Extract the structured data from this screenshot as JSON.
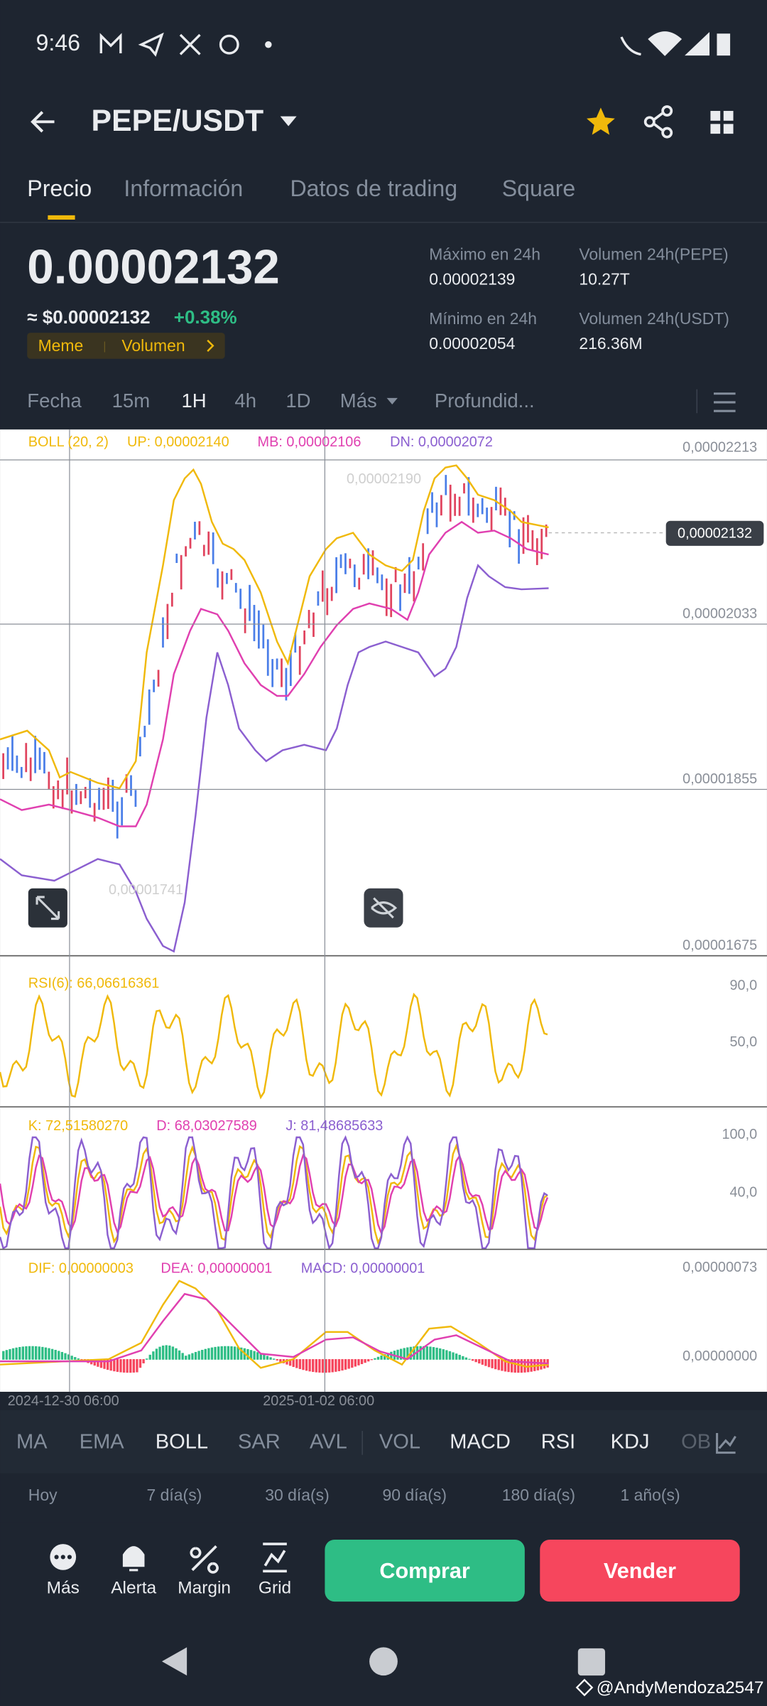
{
  "status_bar": {
    "time": "9:46"
  },
  "header": {
    "pair": "PEPE/USDT"
  },
  "tabs": [
    "Precio",
    "Información",
    "Datos de trading",
    "Square"
  ],
  "price": {
    "last": "0.00002132",
    "fiat": "≈ $0.00002132",
    "change": "+0.38%",
    "tags": [
      "Meme",
      "Volumen"
    ]
  },
  "stats": [
    {
      "label": "Máximo en 24h",
      "value": "0.00002139"
    },
    {
      "label": "Volumen 24h(PEPE)",
      "value": "10.27T"
    },
    {
      "label": "Mínimo en 24h",
      "value": "0.00002054"
    },
    {
      "label": "Volumen 24h(USDT)",
      "value": "216.36M"
    }
  ],
  "intervals": [
    "Fecha",
    "15m",
    "1H",
    "4h",
    "1D",
    "Más",
    "Profundid..."
  ],
  "chart": {
    "boll": {
      "name": "BOLL (20, 2)",
      "up": "UP: 0,00002140",
      "mb": "MB: 0,00002106",
      "dn": "DN: 0,00002072"
    },
    "price_axis": [
      "0,00002213",
      "0,00002033",
      "0,00001855",
      "0,00001675"
    ],
    "last_price_tag": "0,00002132",
    "high_marker": "0,00002190",
    "low_marker": "0,00001741",
    "rsi": {
      "legend": "RSI(6): 66,06616361",
      "axis": [
        "90,0",
        "50,0"
      ]
    },
    "kdj": {
      "k": "K: 72,51580270",
      "d": "D: 68,03027589",
      "j": "J: 81,48685633",
      "axis": [
        "100,0",
        "40,0"
      ]
    },
    "macd": {
      "dif": "DIF: 0,00000003",
      "dea": "DEA: 0,00000001",
      "macd": "MACD: 0,00000001",
      "axis": [
        "0,00000073",
        "0,00000000"
      ]
    },
    "dates": [
      "2024-12-30 06:00",
      "2025-01-02 06:00"
    ]
  },
  "indicators": [
    "MA",
    "EMA",
    "BOLL",
    "SAR",
    "AVL",
    "VOL",
    "MACD",
    "RSI",
    "KDJ",
    "OB"
  ],
  "performance": [
    "Hoy",
    "7 día(s)",
    "30 día(s)",
    "90 día(s)",
    "180 día(s)",
    "1 año(s)"
  ],
  "actions": [
    "Más",
    "Alerta",
    "Margin",
    "Grid"
  ],
  "buy": "Comprar",
  "sell": "Vender",
  "watermark": "@AndyMendoza2547"
}
